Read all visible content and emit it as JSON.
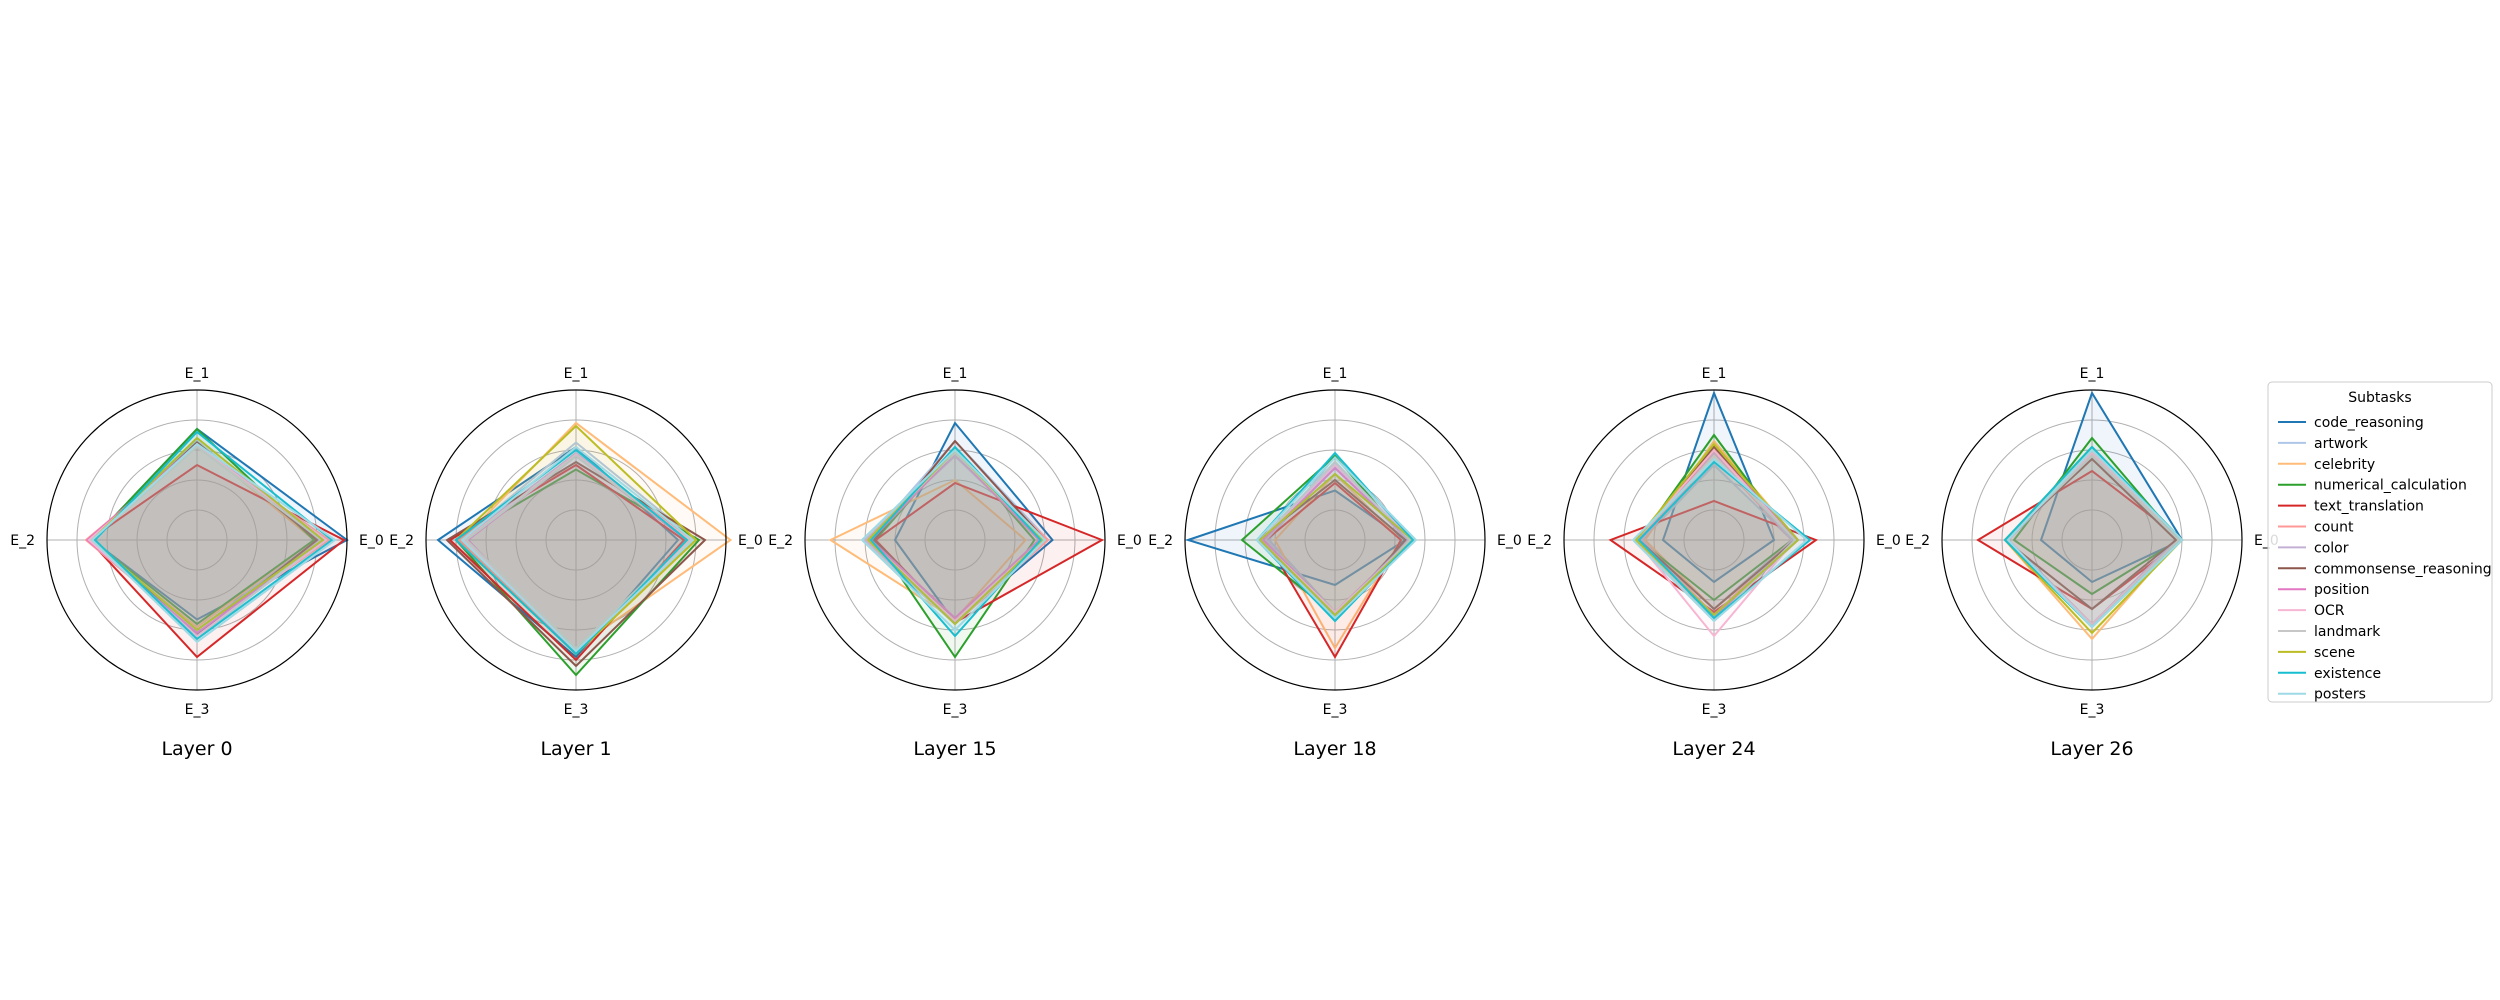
{
  "chart_data": {
    "type": "radar",
    "axes": [
      "E_0",
      "E_1",
      "E_2",
      "E_3"
    ],
    "grid": true,
    "rlim": [
      0,
      1
    ],
    "legend": {
      "title": "Subtasks",
      "placement": "right"
    },
    "series_info": [
      {
        "name": "code_reasoning",
        "color": "#1f77b4"
      },
      {
        "name": "artwork",
        "color": "#aec7e8"
      },
      {
        "name": "celebrity",
        "color": "#ffbb78"
      },
      {
        "name": "numerical_calculation",
        "color": "#2ca02c"
      },
      {
        "name": "text_translation",
        "color": "#d62728"
      },
      {
        "name": "count",
        "color": "#ff9896"
      },
      {
        "name": "color",
        "color": "#c5b0d5"
      },
      {
        "name": "commonsense_reasoning",
        "color": "#8c564b"
      },
      {
        "name": "position",
        "color": "#e377c2"
      },
      {
        "name": "OCR",
        "color": "#f7b6d2"
      },
      {
        "name": "landmark",
        "color": "#c7c7c7"
      },
      {
        "name": "scene",
        "color": "#bcbd22"
      },
      {
        "name": "existence",
        "color": "#17becf"
      },
      {
        "name": "posters",
        "color": "#9edae5"
      }
    ],
    "panels": [
      {
        "title": "Layer 0",
        "values": [
          [
            1.0,
            0.74,
            0.7,
            0.53
          ],
          [
            0.8,
            0.66,
            0.71,
            0.6
          ],
          [
            0.78,
            0.64,
            0.73,
            0.58
          ],
          [
            0.78,
            0.74,
            0.7,
            0.56
          ],
          [
            0.98,
            0.5,
            0.72,
            0.78
          ],
          [
            0.88,
            0.62,
            0.74,
            0.62
          ],
          [
            0.82,
            0.63,
            0.7,
            0.63
          ],
          [
            0.8,
            0.65,
            0.7,
            0.63
          ],
          [
            0.85,
            0.64,
            0.73,
            0.62
          ],
          [
            0.86,
            0.63,
            0.72,
            0.64
          ],
          [
            0.83,
            0.62,
            0.7,
            0.66
          ],
          [
            0.84,
            0.68,
            0.7,
            0.6
          ],
          [
            0.9,
            0.72,
            0.68,
            0.66
          ],
          [
            0.92,
            0.64,
            0.7,
            0.68
          ]
        ]
      },
      {
        "title": "Layer 1",
        "values": [
          [
            0.68,
            0.62,
            0.92,
            0.78
          ],
          [
            0.8,
            0.65,
            0.78,
            0.74
          ],
          [
            1.03,
            0.78,
            0.76,
            0.72
          ],
          [
            0.82,
            0.47,
            0.8,
            0.9
          ],
          [
            0.72,
            0.5,
            0.84,
            0.8
          ],
          [
            0.78,
            0.56,
            0.78,
            0.76
          ],
          [
            0.76,
            0.58,
            0.76,
            0.74
          ],
          [
            0.86,
            0.52,
            0.86,
            0.84
          ],
          [
            0.74,
            0.56,
            0.72,
            0.76
          ],
          [
            0.76,
            0.57,
            0.74,
            0.74
          ],
          [
            0.75,
            0.56,
            0.73,
            0.72
          ],
          [
            0.8,
            0.76,
            0.8,
            0.76
          ],
          [
            0.74,
            0.6,
            0.8,
            0.76
          ],
          [
            0.78,
            0.62,
            0.76,
            0.74
          ]
        ]
      },
      {
        "title": "Layer 15",
        "values": [
          [
            0.65,
            0.78,
            0.4,
            0.55
          ],
          [
            0.62,
            0.66,
            0.58,
            0.52
          ],
          [
            0.47,
            0.4,
            0.83,
            0.53
          ],
          [
            0.53,
            0.61,
            0.53,
            0.78
          ],
          [
            0.98,
            0.38,
            0.53,
            0.55
          ],
          [
            0.62,
            0.58,
            0.56,
            0.56
          ],
          [
            0.58,
            0.56,
            0.6,
            0.56
          ],
          [
            0.6,
            0.66,
            0.54,
            0.54
          ],
          [
            0.56,
            0.58,
            0.56,
            0.52
          ],
          [
            0.58,
            0.59,
            0.58,
            0.54
          ],
          [
            0.6,
            0.58,
            0.62,
            0.56
          ],
          [
            0.58,
            0.6,
            0.58,
            0.56
          ],
          [
            0.57,
            0.62,
            0.56,
            0.64
          ],
          [
            0.6,
            0.6,
            0.62,
            0.6
          ]
        ]
      },
      {
        "title": "Layer 18",
        "values": [
          [
            0.47,
            0.33,
            0.98,
            0.3
          ],
          [
            0.52,
            0.56,
            0.44,
            0.48
          ],
          [
            0.44,
            0.44,
            0.4,
            0.72
          ],
          [
            0.48,
            0.56,
            0.62,
            0.5
          ],
          [
            0.44,
            0.38,
            0.46,
            0.78
          ],
          [
            0.5,
            0.52,
            0.48,
            0.5
          ],
          [
            0.48,
            0.5,
            0.46,
            0.5
          ],
          [
            0.47,
            0.4,
            0.52,
            0.52
          ],
          [
            0.5,
            0.48,
            0.48,
            0.48
          ],
          [
            0.52,
            0.5,
            0.5,
            0.48
          ],
          [
            0.5,
            0.52,
            0.5,
            0.5
          ],
          [
            0.52,
            0.44,
            0.5,
            0.5
          ],
          [
            0.52,
            0.58,
            0.52,
            0.54
          ],
          [
            0.54,
            0.55,
            0.52,
            0.52
          ]
        ]
      },
      {
        "title": "Layer 24",
        "values": [
          [
            0.4,
            0.98,
            0.34,
            0.28
          ],
          [
            0.52,
            0.5,
            0.48,
            0.46
          ],
          [
            0.56,
            0.66,
            0.46,
            0.46
          ],
          [
            0.52,
            0.7,
            0.5,
            0.4
          ],
          [
            0.68,
            0.26,
            0.69,
            0.48
          ],
          [
            0.52,
            0.56,
            0.48,
            0.5
          ],
          [
            0.52,
            0.58,
            0.48,
            0.52
          ],
          [
            0.54,
            0.62,
            0.5,
            0.46
          ],
          [
            0.56,
            0.6,
            0.5,
            0.52
          ],
          [
            0.54,
            0.6,
            0.52,
            0.64
          ],
          [
            0.54,
            0.56,
            0.52,
            0.54
          ],
          [
            0.56,
            0.64,
            0.52,
            0.5
          ],
          [
            0.64,
            0.52,
            0.5,
            0.52
          ],
          [
            0.62,
            0.54,
            0.54,
            0.54
          ]
        ]
      },
      {
        "title": "Layer 26",
        "values": [
          [
            0.6,
            0.98,
            0.34,
            0.28
          ],
          [
            0.56,
            0.56,
            0.56,
            0.58
          ],
          [
            0.58,
            0.6,
            0.58,
            0.66
          ],
          [
            0.58,
            0.68,
            0.52,
            0.36
          ],
          [
            0.6,
            0.46,
            0.76,
            0.46
          ],
          [
            0.58,
            0.58,
            0.56,
            0.56
          ],
          [
            0.56,
            0.56,
            0.56,
            0.56
          ],
          [
            0.56,
            0.54,
            0.58,
            0.46
          ],
          [
            0.58,
            0.56,
            0.58,
            0.56
          ],
          [
            0.58,
            0.58,
            0.58,
            0.56
          ],
          [
            0.58,
            0.56,
            0.58,
            0.58
          ],
          [
            0.6,
            0.62,
            0.58,
            0.62
          ],
          [
            0.6,
            0.62,
            0.58,
            0.58
          ],
          [
            0.6,
            0.6,
            0.56,
            0.58
          ]
        ]
      }
    ]
  }
}
